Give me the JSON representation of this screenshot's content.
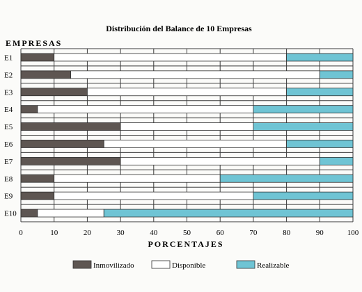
{
  "chart_data": {
    "type": "bar",
    "stacked": true,
    "orientation": "horizontal",
    "title": "Distribución del Balance de 10 Empresas",
    "ylabel": "EMPRESAS",
    "xlabel": "PORCENTAJES",
    "xlim": [
      0,
      100
    ],
    "xticks": [
      0,
      10,
      20,
      30,
      40,
      50,
      60,
      70,
      80,
      90,
      100
    ],
    "grid": true,
    "legend_position": "bottom",
    "categories": [
      "E1",
      "E2",
      "E3",
      "E4",
      "E5",
      "E6",
      "E7",
      "E8",
      "E9",
      "E10"
    ],
    "series": [
      {
        "name": "Inmovilizado",
        "color": "#5e5652",
        "values": [
          10,
          15,
          20,
          5,
          30,
          25,
          30,
          10,
          10,
          5
        ]
      },
      {
        "name": "Disponible",
        "color": "#ffffff",
        "values": [
          70,
          75,
          60,
          65,
          40,
          55,
          60,
          50,
          60,
          20
        ]
      },
      {
        "name": "Realizable",
        "color": "#6fc4d4",
        "values": [
          20,
          10,
          20,
          30,
          30,
          20,
          10,
          40,
          30,
          75
        ]
      }
    ]
  }
}
